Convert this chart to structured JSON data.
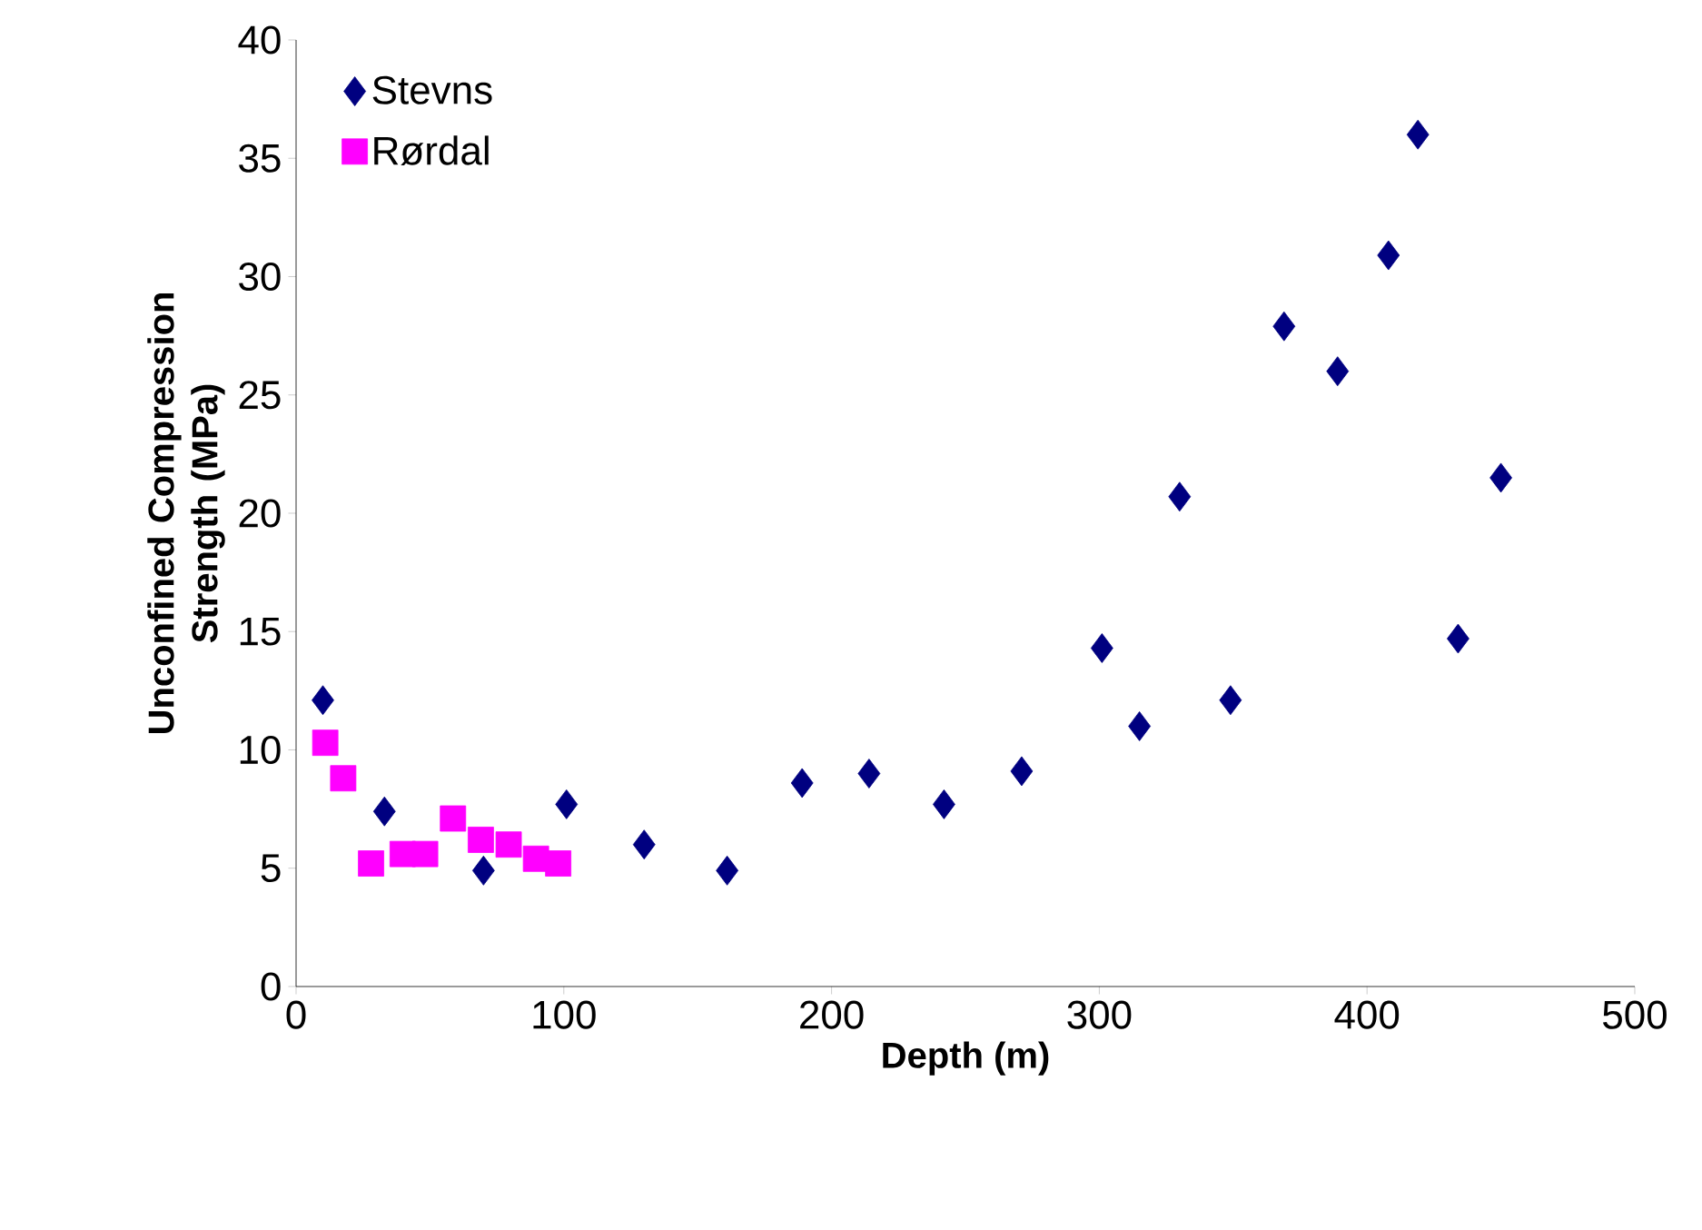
{
  "chart_data": {
    "type": "scatter",
    "xlabel": "Depth (m)",
    "ylabel": "Unconfined Compression Strength (MPa)",
    "xlim": [
      0,
      500
    ],
    "xticks": [
      0,
      100,
      200,
      300,
      400,
      500
    ],
    "ylim": [
      0,
      40
    ],
    "yticks": [
      0,
      5,
      10,
      15,
      20,
      25,
      30,
      35,
      40
    ],
    "grid": false,
    "legend": "top left",
    "series": [
      {
        "name": "Stevns",
        "color": "#000080",
        "marker": "diamond",
        "x": [
          10,
          33,
          70,
          101,
          130,
          161,
          189,
          214,
          242,
          271,
          301,
          315,
          330,
          349,
          369,
          389,
          408,
          419,
          434,
          450
        ],
        "values": [
          12.1,
          7.4,
          4.9,
          7.7,
          6.0,
          4.9,
          8.6,
          9.0,
          7.7,
          9.1,
          14.3,
          11.0,
          20.7,
          12.1,
          27.9,
          26.0,
          30.9,
          36.0,
          14.7,
          21.5
        ]
      },
      {
        "name": "Rørdal",
        "color": "#ff00ff",
        "marker": "square",
        "x": [
          10.9,
          17.6,
          28,
          39.8,
          48.2,
          58.6,
          69,
          79.4,
          89.6,
          97.9
        ],
        "values": [
          10.3,
          8.8,
          5.2,
          5.6,
          5.6,
          7.1,
          6.2,
          6.0,
          5.4,
          5.2
        ]
      }
    ]
  }
}
